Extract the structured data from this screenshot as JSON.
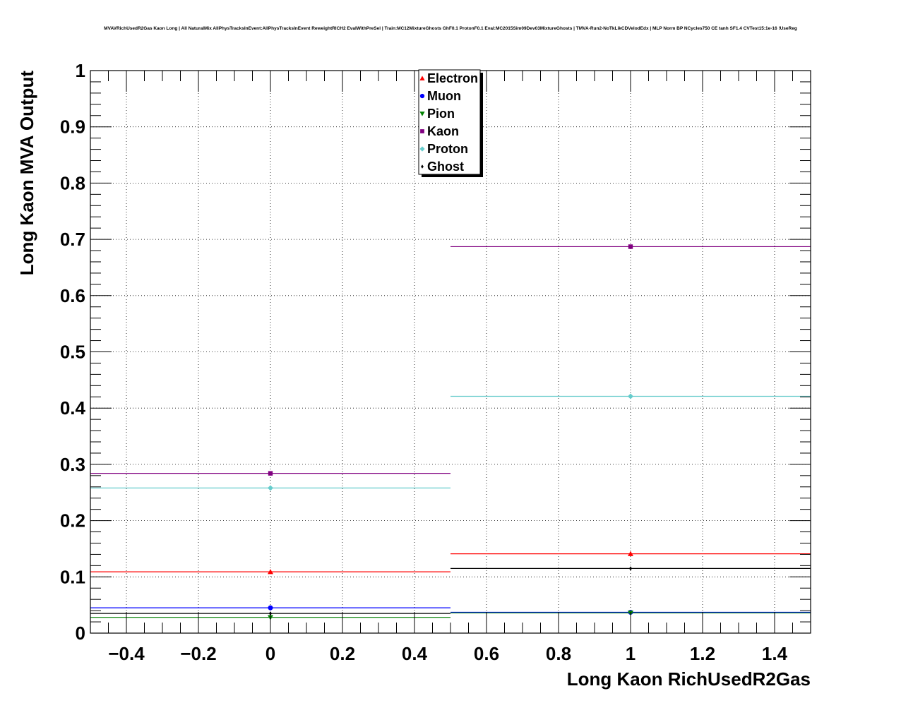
{
  "chart_data": {
    "type": "scatter",
    "title": "MVAVRichUsedR2Gas Kaon Long | All NaturalMix AllPhysTracksInEvent:AllPhysTracksInEvent ReweightRICH2 EvalWithPreSel | Train:MC12MixtureGhosts GhF0.1 ProtonF0.1 Eval:MC2015Sim09Dev03MixtureGhosts | TMVA-Run2-NoTkLikCDVelodEdx | MLP Norm BP NCycles750 CE tanh SF1.4 CVTest15:1e-16 !UseReg",
    "xlabel": "Long Kaon RichUsedR2Gas",
    "ylabel": "Long Kaon MVA Output",
    "xlim": [
      -0.5,
      1.5
    ],
    "ylim": [
      0,
      1
    ],
    "xticks": [
      "−0.4",
      "−0.2",
      "0",
      "0.2",
      "0.4",
      "0.6",
      "0.8",
      "1",
      "1.2",
      "1.4"
    ],
    "xtick_values": [
      -0.4,
      -0.2,
      0,
      0.2,
      0.4,
      0.6,
      0.8,
      1.0,
      1.2,
      1.4
    ],
    "yticks": [
      "0",
      "0.1",
      "0.2",
      "0.3",
      "0.4",
      "0.5",
      "0.6",
      "0.7",
      "0.8",
      "0.9",
      "1"
    ],
    "ytick_values": [
      0,
      0.1,
      0.2,
      0.3,
      0.4,
      0.5,
      0.6,
      0.7,
      0.8,
      0.9,
      1.0
    ],
    "grid": true,
    "legend_position": "top-center",
    "bins": [
      {
        "x": 0,
        "low": -0.5,
        "high": 0.5
      },
      {
        "x": 1,
        "low": 0.5,
        "high": 1.5
      }
    ],
    "series": [
      {
        "name": "Electron",
        "color": "#ff0000",
        "marker": "triangle-up",
        "values": [
          0.109,
          0.141
        ]
      },
      {
        "name": "Muon",
        "color": "#0000ff",
        "marker": "circle",
        "values": [
          0.045,
          0.037
        ]
      },
      {
        "name": "Pion",
        "color": "#008000",
        "marker": "triangle-down",
        "values": [
          0.028,
          0.036
        ]
      },
      {
        "name": "Kaon",
        "color": "#800080",
        "marker": "square",
        "values": [
          0.284,
          0.687
        ]
      },
      {
        "name": "Proton",
        "color": "#66cccc",
        "marker": "diamond",
        "values": [
          0.258,
          0.421
        ]
      },
      {
        "name": "Ghost",
        "color": "#000000",
        "marker": "small-diamond",
        "values": [
          0.035,
          0.115
        ]
      }
    ]
  }
}
